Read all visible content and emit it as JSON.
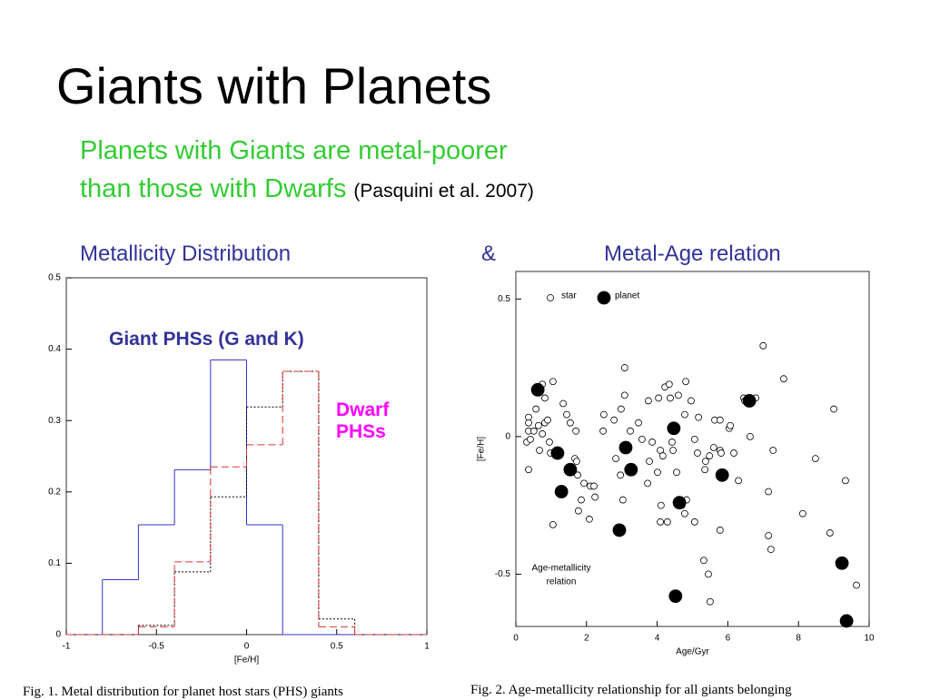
{
  "title": "Giants with Planets",
  "subtitle": {
    "lines": [
      "Planets with Giants are metal-poorer",
      "than those with Dwarfs"
    ],
    "citation": "(Pasquini et al. 2007)"
  },
  "headings": {
    "left": "Metallicity Distribution",
    "joiner": "&",
    "right": "Metal-Age relation"
  },
  "captions": [
    "Fig. 1. Metal distribution for planet host stars (PHS) giants",
    "Fig. 2. Age-metallicity relationship for all giants belonging"
  ],
  "chart_data": [
    {
      "type": "histogram",
      "xlabel": "[Fe/H]",
      "bins": [
        -1,
        -0.8,
        -0.6,
        -0.4,
        -0.2,
        0,
        0.2,
        0.4,
        0.6,
        0.8,
        1
      ],
      "series": [
        {
          "name": "Giant PHSs (G and K)",
          "color": "#3333cc",
          "line": "solid",
          "values": [
            0,
            0.077,
            0.154,
            0.231,
            0.385,
            0.154,
            0,
            0,
            0,
            0
          ]
        },
        {
          "color": "#000000",
          "line": "dotted",
          "values": [
            0,
            0,
            0.013,
            0.088,
            0.193,
            0.319,
            0.369,
            0.022,
            0,
            0
          ]
        },
        {
          "name": "Dwarf PHSs",
          "color": "#e03030",
          "line": "dashed",
          "values": [
            0,
            0,
            0.011,
            0.102,
            0.235,
            0.266,
            0.369,
            0.011,
            0,
            0
          ]
        }
      ],
      "xlim": [
        -1,
        1
      ],
      "ylim": [
        0,
        0.5
      ],
      "xticks": [
        -1,
        -0.5,
        0,
        0.5,
        1
      ],
      "yticks": [
        0,
        0.1,
        0.2,
        0.3,
        0.4,
        0.5
      ]
    },
    {
      "type": "scatter",
      "xlabel": "Age/Gyr",
      "ylabel": "[Fe/H]",
      "legend": "upper left",
      "annotation": [
        "Age-metallicity",
        "relation"
      ],
      "xlim": [
        0,
        10
      ],
      "ylim": [
        -0.69,
        0.6
      ],
      "xticks": [
        0,
        2,
        4,
        6,
        8,
        10
      ],
      "yticks": [
        -0.5,
        0,
        0.5
      ],
      "series": [
        {
          "name": "star",
          "color": "#000000",
          "filled": false,
          "x": [
            1.05,
            0.75,
            0.36,
            0.36,
            0.36,
            0.31,
            0.41,
            0.36,
            0.57,
            0.64,
            0.82,
            0.75,
            0.51,
            0.9,
            0.95,
            0.98,
            0.67,
            0.82,
            1.34,
            1.44,
            1.54,
            1.7,
            1.49,
            1.67,
            1.72,
            1.75,
            1.93,
            2.11,
            2.21,
            1.85,
            2.08,
            1.77,
            1.05,
            2.24,
            2.49,
            2.47,
            2.78,
            2.98,
            3.08,
            3.08,
            2.83,
            2.96,
            3.03,
            3.24,
            3.47,
            3.57,
            3.75,
            4.04,
            4.22,
            4.34,
            4.37,
            4.6,
            4.81,
            4.78,
            4.96,
            5.17,
            3.78,
            3.86,
            4.09,
            4.16,
            4.42,
            4.45,
            4.01,
            4.55,
            4.11,
            4.09,
            4.29,
            4.7,
            4.83,
            5.06,
            4.78,
            5.06,
            5.14,
            5.37,
            5.35,
            5.6,
            5.48,
            5.63,
            5.78,
            5.78,
            5.81,
            6.04,
            6.07,
            6.17,
            6.3,
            6.45,
            6.48,
            6.79,
            6.63,
            7.0,
            7.58,
            7.28,
            7.15,
            7.15,
            7.22,
            8.12,
            8.48,
            9.0,
            8.89,
            9.33,
            9.64,
            5.32,
            5.45,
            5.5,
            5.78,
            3.73
          ],
          "values": [
            0.2,
            0.19,
            0.07,
            0.05,
            0.02,
            -0.02,
            -0.01,
            -0.12,
            0.1,
            0.04,
            0.05,
            0.01,
            0.02,
            0.06,
            -0.02,
            -0.06,
            -0.05,
            0.14,
            0.12,
            0.08,
            0.05,
            0.02,
            -0.12,
            -0.08,
            -0.09,
            -0.14,
            -0.17,
            -0.18,
            -0.18,
            -0.23,
            -0.3,
            -0.27,
            -0.32,
            -0.22,
            0.08,
            0.02,
            0.06,
            0.1,
            0.15,
            0.25,
            -0.08,
            -0.14,
            -0.23,
            0.02,
            0.05,
            -0.01,
            0.13,
            0.14,
            0.18,
            0.19,
            0.14,
            0.15,
            0.2,
            0.08,
            0.13,
            0.07,
            -0.09,
            -0.02,
            -0.05,
            -0.07,
            -0.02,
            -0.05,
            -0.13,
            -0.13,
            -0.25,
            -0.31,
            -0.31,
            -0.25,
            -0.23,
            -0.31,
            -0.28,
            -0.01,
            -0.06,
            -0.09,
            -0.12,
            -0.04,
            -0.07,
            0.06,
            0.06,
            -0.05,
            -0.06,
            0.03,
            0.04,
            -0.06,
            -0.16,
            0.14,
            0.13,
            0.14,
            0.0,
            0.33,
            0.21,
            -0.05,
            -0.2,
            -0.36,
            -0.41,
            -0.28,
            -0.08,
            0.1,
            -0.35,
            -0.16,
            -0.54,
            -0.45,
            -0.5,
            -0.6,
            -0.34,
            -0.17
          ]
        },
        {
          "name": "planet",
          "color": "#000000",
          "filled": true,
          "x": [
            0.62,
            1.18,
            1.54,
            1.29,
            2.93,
            3.11,
            3.26,
            4.47,
            4.63,
            4.52,
            5.84,
            6.61,
            9.23,
            9.36
          ],
          "values": [
            0.17,
            -0.06,
            -0.12,
            -0.2,
            -0.34,
            -0.04,
            -0.12,
            0.03,
            -0.24,
            -0.58,
            -0.14,
            0.13,
            -0.46,
            -0.67
          ]
        }
      ]
    }
  ]
}
